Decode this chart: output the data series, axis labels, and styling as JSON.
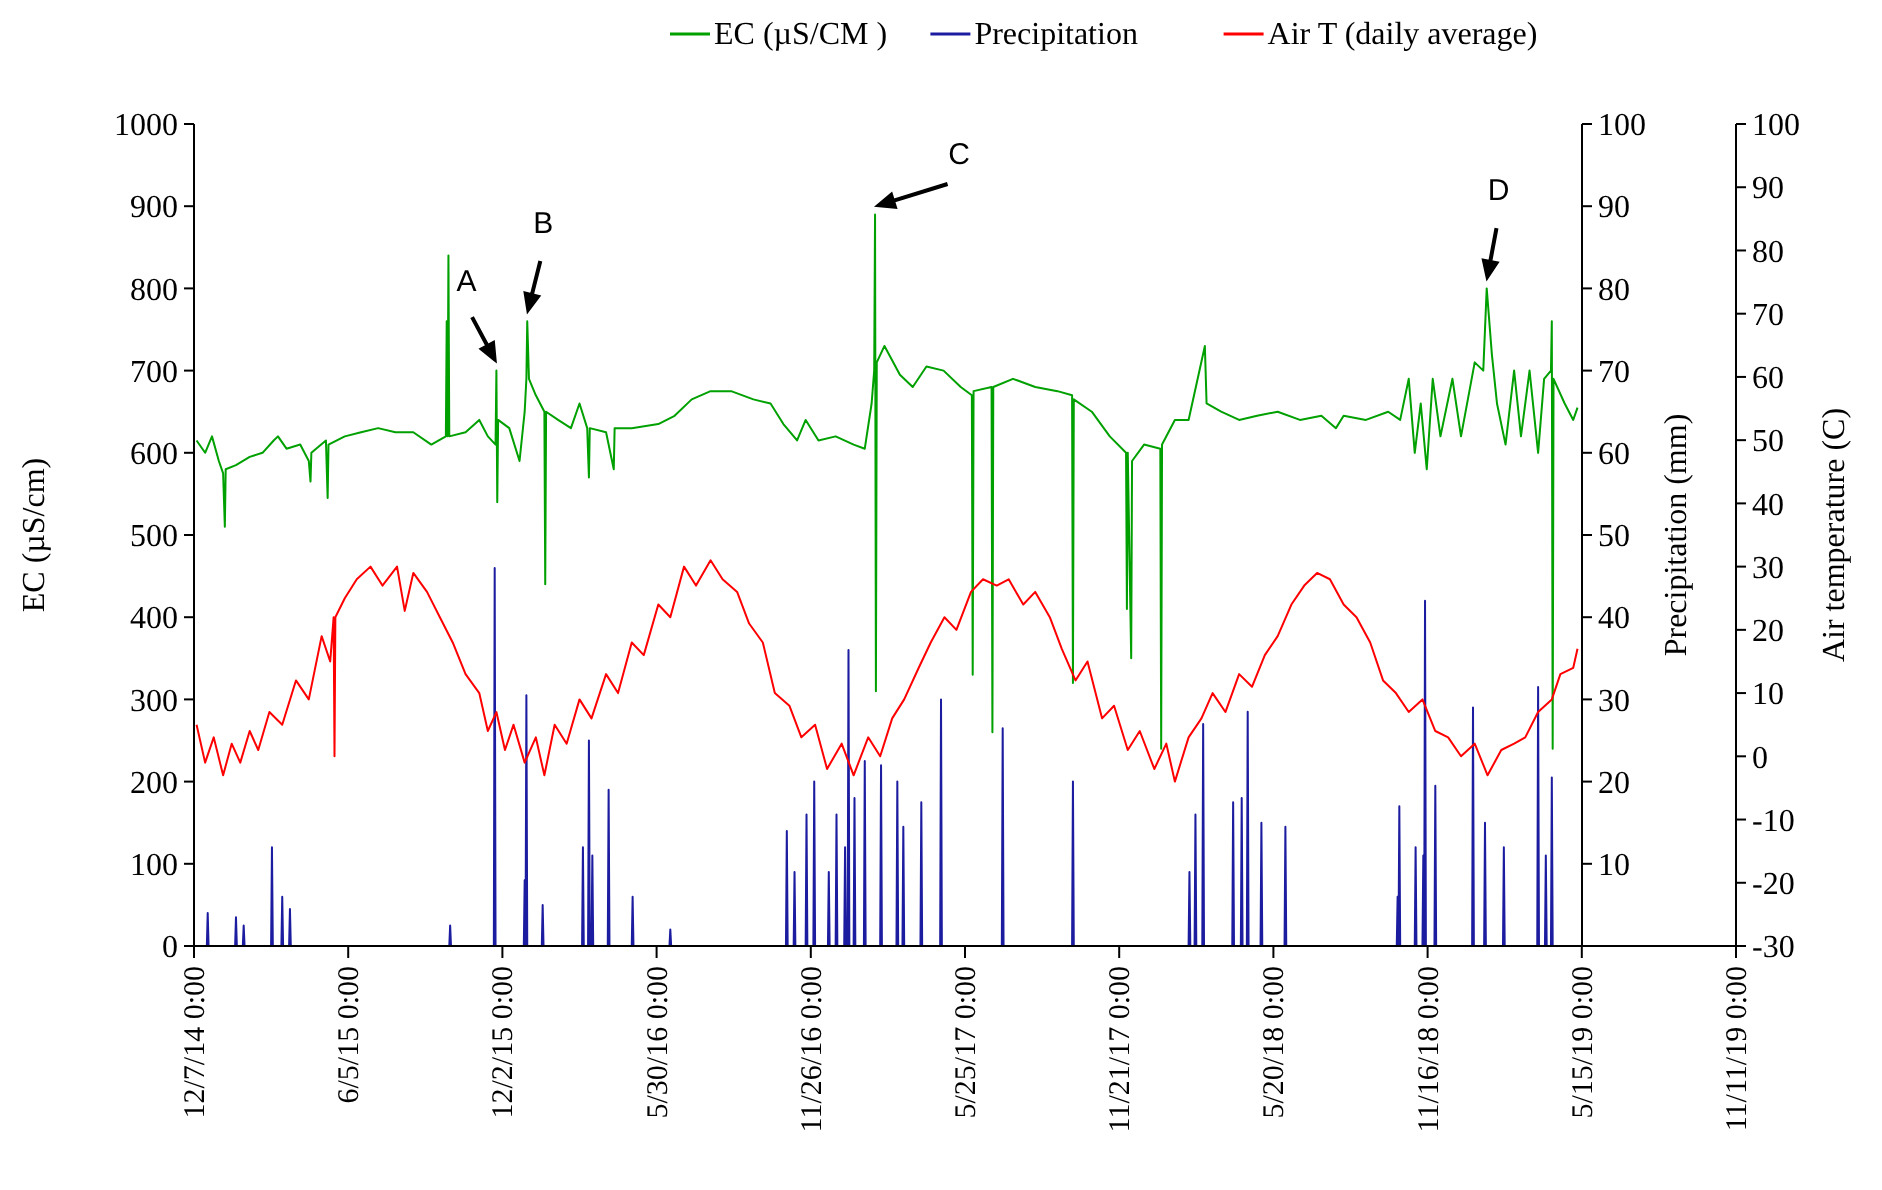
{
  "chart_data": {
    "type": "line",
    "xlim": [
      "2014-12-07",
      "2019-11-11"
    ],
    "xticks": [
      {
        "value": "2014-12-07",
        "label": "12/7/14 0:00"
      },
      {
        "value": "2015-06-05",
        "label": "6/5/15 0:00"
      },
      {
        "value": "2015-12-02",
        "label": "12/2/15 0:00"
      },
      {
        "value": "2016-05-30",
        "label": "5/30/16 0:00"
      },
      {
        "value": "2016-11-26",
        "label": "11/26/16 0:00"
      },
      {
        "value": "2017-05-25",
        "label": "5/25/17 0:00"
      },
      {
        "value": "2017-11-21",
        "label": "11/21/17 0:00"
      },
      {
        "value": "2018-05-20",
        "label": "5/20/18 0:00"
      },
      {
        "value": "2018-11-16",
        "label": "11/16/18 0:00"
      },
      {
        "value": "2019-05-15",
        "label": "5/15/19 0:00"
      },
      {
        "value": "2019-11-11",
        "label": "11/11/19 0:00"
      }
    ],
    "ylabel": "EC (µS/cm)",
    "ylim": [
      0,
      1000
    ],
    "yticks": [
      0,
      100,
      200,
      300,
      400,
      500,
      600,
      700,
      800,
      900,
      1000
    ],
    "y2label": "Precipitation (mm)",
    "y2lim": [
      0,
      100
    ],
    "y2ticks": [
      10,
      20,
      30,
      40,
      50,
      60,
      70,
      80,
      90,
      100
    ],
    "y3label": "Air temperature (C)",
    "y3lim": [
      -30,
      100
    ],
    "y3ticks": [
      -30,
      -20,
      -10,
      0,
      10,
      20,
      30,
      40,
      50,
      60,
      70,
      80,
      90,
      100
    ],
    "legend": "top",
    "grid": false,
    "annotations": [
      {
        "text": "A",
        "x": "2015-11-25",
        "y": 700
      },
      {
        "text": "B",
        "x": "2015-12-31",
        "y": 760
      },
      {
        "text": "C",
        "x": "2017-02-09",
        "y": 890
      },
      {
        "text": "D",
        "x": "2019-01-24",
        "y": 800
      }
    ],
    "series": [
      {
        "name": "EC (µS/CM )",
        "color": "#00a000",
        "x": [
          "2014-12-10",
          "2014-12-20",
          "2014-12-28",
          "2015-01-05",
          "2015-01-10",
          "2015-01-12",
          "2015-01-13",
          "2015-01-25",
          "2015-02-10",
          "2015-02-25",
          "2015-03-10",
          "2015-03-15",
          "2015-03-25",
          "2015-04-10",
          "2015-04-20",
          "2015-04-22",
          "2015-04-23",
          "2015-05-10",
          "2015-05-12",
          "2015-05-13",
          "2015-06-01",
          "2015-06-20",
          "2015-07-10",
          "2015-07-30",
          "2015-08-20",
          "2015-09-10",
          "2015-09-27",
          "2015-09-28",
          "2015-09-29",
          "2015-09-30",
          "2015-10-01",
          "2015-10-20",
          "2015-11-05",
          "2015-11-15",
          "2015-11-24",
          "2015-11-25",
          "2015-11-26",
          "2015-11-27",
          "2015-12-10",
          "2015-12-22",
          "2015-12-28",
          "2015-12-30",
          "2015-12-31",
          "2016-01-02",
          "2016-01-10",
          "2016-01-20",
          "2016-01-21",
          "2016-01-22",
          "2016-02-05",
          "2016-02-20",
          "2016-03-01",
          "2016-03-10",
          "2016-03-12",
          "2016-03-13",
          "2016-04-01",
          "2016-04-10",
          "2016-04-11",
          "2016-05-01",
          "2016-06-01",
          "2016-06-20",
          "2016-07-10",
          "2016-08-01",
          "2016-08-25",
          "2016-09-20",
          "2016-10-10",
          "2016-10-25",
          "2016-11-10",
          "2016-11-20",
          "2016-12-05",
          "2016-12-25",
          "2017-01-15",
          "2017-01-28",
          "2017-02-05",
          "2017-02-08",
          "2017-02-09",
          "2017-02-10",
          "2017-02-11",
          "2017-02-20",
          "2017-03-10",
          "2017-03-25",
          "2017-04-10",
          "2017-04-30",
          "2017-05-20",
          "2017-06-02",
          "2017-06-03",
          "2017-06-04",
          "2017-06-25",
          "2017-06-26",
          "2017-06-27",
          "2017-07-20",
          "2017-08-15",
          "2017-09-10",
          "2017-09-27",
          "2017-09-28",
          "2017-09-29",
          "2017-10-20",
          "2017-11-10",
          "2017-11-29",
          "2017-11-30",
          "2017-12-01",
          "2017-12-05",
          "2017-12-06",
          "2017-12-20",
          "2018-01-08",
          "2018-01-09",
          "2018-01-10",
          "2018-01-25",
          "2018-02-10",
          "2018-03-01",
          "2018-03-03",
          "2018-03-20",
          "2018-04-10",
          "2018-05-01",
          "2018-05-25",
          "2018-06-20",
          "2018-07-15",
          "2018-08-01",
          "2018-08-10",
          "2018-09-05",
          "2018-10-01",
          "2018-10-15",
          "2018-10-25",
          "2018-11-01",
          "2018-11-08",
          "2018-11-15",
          "2018-11-22",
          "2018-12-01",
          "2018-12-15",
          "2018-12-25",
          "2019-01-10",
          "2019-01-20",
          "2019-01-24",
          "2019-01-30",
          "2019-02-05",
          "2019-02-15",
          "2019-02-25",
          "2019-03-05",
          "2019-03-15",
          "2019-03-25",
          "2019-04-01",
          "2019-04-09",
          "2019-04-10",
          "2019-04-11",
          "2019-04-12",
          "2019-04-25",
          "2019-05-05",
          "2019-05-10"
        ],
        "values": [
          615,
          600,
          620,
          590,
          575,
          510,
          580,
          585,
          595,
          600,
          615,
          620,
          605,
          610,
          590,
          565,
          600,
          615,
          545,
          610,
          620,
          625,
          630,
          625,
          625,
          610,
          620,
          760,
          620,
          840,
          620,
          625,
          640,
          620,
          610,
          700,
          540,
          640,
          630,
          590,
          650,
          690,
          760,
          690,
          670,
          650,
          440,
          650,
          640,
          630,
          660,
          630,
          570,
          630,
          625,
          580,
          630,
          630,
          635,
          645,
          665,
          675,
          675,
          665,
          660,
          635,
          615,
          640,
          615,
          620,
          610,
          605,
          660,
          700,
          890,
          310,
          710,
          730,
          695,
          680,
          705,
          700,
          680,
          670,
          330,
          675,
          680,
          260,
          680,
          690,
          680,
          675,
          670,
          320,
          665,
          650,
          620,
          600,
          410,
          600,
          350,
          590,
          610,
          605,
          240,
          610,
          640,
          640,
          730,
          660,
          650,
          640,
          645,
          650,
          640,
          645,
          630,
          645,
          640,
          650,
          640,
          690,
          600,
          660,
          580,
          690,
          620,
          690,
          620,
          710,
          700,
          800,
          720,
          660,
          610,
          700,
          620,
          700,
          600,
          690,
          700,
          760,
          240,
          690,
          660,
          640,
          655
        ]
      },
      {
        "name": "Precipitation",
        "color": "#1c1ca0",
        "axis": "y2",
        "x": [
          "2014-12-22",
          "2014-12-23",
          "2014-12-24",
          "2015-01-24",
          "2015-01-25",
          "2015-01-26",
          "2015-02-02",
          "2015-02-03",
          "2015-02-04",
          "2015-03-07",
          "2015-03-08",
          "2015-03-09",
          "2015-03-19",
          "2015-03-20",
          "2015-03-21",
          "2015-03-28",
          "2015-03-29",
          "2015-03-30",
          "2015-10-01",
          "2015-10-02",
          "2015-10-03",
          "2015-11-22",
          "2015-11-23",
          "2015-11-24",
          "2015-12-27",
          "2015-12-28",
          "2015-12-29",
          "2015-12-30",
          "2015-12-31",
          "2016-01-17",
          "2016-01-18",
          "2016-01-19",
          "2016-03-04",
          "2016-03-05",
          "2016-03-06",
          "2016-03-11",
          "2016-03-12",
          "2016-03-13",
          "2016-03-15",
          "2016-03-16",
          "2016-03-17",
          "2016-04-03",
          "2016-04-04",
          "2016-04-05",
          "2016-05-01",
          "2016-05-02",
          "2016-05-03",
          "2016-06-14",
          "2016-06-15",
          "2016-06-16",
          "2016-10-28",
          "2016-10-29",
          "2016-10-30",
          "2016-11-06",
          "2016-11-07",
          "2016-11-08",
          "2016-11-20",
          "2016-11-21",
          "2016-11-22",
          "2016-11-29",
          "2016-11-30",
          "2016-12-01",
          "2016-12-16",
          "2016-12-17",
          "2016-12-18",
          "2016-12-25",
          "2016-12-26",
          "2016-12-27",
          "2017-01-04",
          "2017-01-05",
          "2017-01-06",
          "2017-01-08",
          "2017-01-09",
          "2017-01-10",
          "2017-01-15",
          "2017-01-16",
          "2017-01-17",
          "2017-01-27",
          "2017-01-28",
          "2017-01-29",
          "2017-02-15",
          "2017-02-16",
          "2017-02-17",
          "2017-03-06",
          "2017-03-07",
          "2017-03-08",
          "2017-03-13",
          "2017-03-14",
          "2017-03-15",
          "2017-04-03",
          "2017-04-04",
          "2017-04-05",
          "2017-04-26",
          "2017-04-27",
          "2017-04-28",
          "2017-07-07",
          "2017-07-08",
          "2017-07-09",
          "2017-09-27",
          "2017-09-28",
          "2017-09-29",
          "2018-02-10",
          "2018-02-11",
          "2018-02-12",
          "2018-02-17",
          "2018-02-18",
          "2018-02-19",
          "2018-02-26",
          "2018-02-27",
          "2018-02-28",
          "2018-04-02",
          "2018-04-03",
          "2018-04-04",
          "2018-04-12",
          "2018-04-13",
          "2018-04-14",
          "2018-04-19",
          "2018-04-20",
          "2018-04-21",
          "2018-05-05",
          "2018-05-06",
          "2018-05-07",
          "2018-06-02",
          "2018-06-03",
          "2018-06-04",
          "2018-10-11",
          "2018-10-12",
          "2018-10-13",
          "2018-10-14",
          "2018-10-15",
          "2018-11-01",
          "2018-11-02",
          "2018-11-03",
          "2018-11-10",
          "2018-11-11",
          "2018-11-12",
          "2018-11-13",
          "2018-11-14",
          "2018-11-24",
          "2018-11-25",
          "2018-11-26",
          "2019-01-07",
          "2019-01-08",
          "2019-01-09",
          "2019-01-21",
          "2019-01-22",
          "2019-01-23",
          "2019-02-12",
          "2019-02-13",
          "2019-02-14",
          "2019-03-24",
          "2019-03-25",
          "2019-03-26",
          "2019-04-02",
          "2019-04-03",
          "2019-04-04",
          "2019-04-09",
          "2019-04-10",
          "2019-04-11"
        ],
        "values": [
          0,
          4,
          0,
          0,
          3.5,
          0,
          0,
          2.5,
          0,
          0,
          12,
          0,
          0,
          6,
          0,
          0,
          4.5,
          0,
          0,
          2.5,
          0,
          0,
          46,
          0,
          0,
          8,
          0,
          30.5,
          0,
          0,
          5,
          0,
          0,
          12,
          0,
          0,
          25,
          0,
          0,
          11,
          0,
          0,
          19,
          0,
          0,
          6,
          0,
          0,
          2,
          0,
          0,
          14,
          0,
          0,
          9,
          0,
          0,
          16,
          0,
          0,
          20,
          0,
          0,
          9,
          0,
          0,
          16,
          0,
          0,
          12,
          0,
          0,
          36,
          0,
          0,
          18,
          0,
          0,
          22.5,
          0,
          0,
          22,
          0,
          0,
          20,
          0,
          0,
          14.5,
          0,
          0,
          17.5,
          0,
          0,
          30,
          0,
          0,
          26.5,
          0,
          0,
          20,
          0,
          0,
          9,
          0,
          0,
          16,
          0,
          0,
          27,
          0,
          0,
          17.5,
          0,
          0,
          18,
          0,
          0,
          28.5,
          0,
          0,
          15,
          0,
          0,
          14.5,
          0,
          0,
          6,
          0,
          17,
          0,
          0,
          12,
          0,
          0,
          11,
          0,
          42,
          0,
          0,
          19.5,
          0,
          0,
          29,
          0,
          0,
          15,
          0,
          0,
          12,
          0,
          0,
          31.5,
          0,
          0,
          11,
          0,
          0,
          20.5,
          0
        ]
      },
      {
        "name": "Air T (daily average)",
        "color": "#ff0000",
        "axis": "y3",
        "x": [
          "2014-12-10",
          "2014-12-20",
          "2014-12-30",
          "2015-01-10",
          "2015-01-20",
          "2015-01-30",
          "2015-02-10",
          "2015-02-20",
          "2015-03-05",
          "2015-03-20",
          "2015-04-05",
          "2015-04-20",
          "2015-05-05",
          "2015-05-15",
          "2015-05-19",
          "2015-05-20",
          "2015-05-21",
          "2015-06-01",
          "2015-06-15",
          "2015-07-01",
          "2015-07-15",
          "2015-08-01",
          "2015-08-10",
          "2015-08-20",
          "2015-09-05",
          "2015-09-20",
          "2015-10-05",
          "2015-10-20",
          "2015-11-05",
          "2015-11-15",
          "2015-11-25",
          "2015-12-05",
          "2015-12-15",
          "2015-12-28",
          "2016-01-10",
          "2016-01-20",
          "2016-02-01",
          "2016-02-15",
          "2016-03-01",
          "2016-03-15",
          "2016-04-01",
          "2016-04-15",
          "2016-05-01",
          "2016-05-15",
          "2016-06-01",
          "2016-06-15",
          "2016-07-01",
          "2016-07-15",
          "2016-08-01",
          "2016-08-15",
          "2016-09-01",
          "2016-09-15",
          "2016-10-01",
          "2016-10-15",
          "2016-11-01",
          "2016-11-15",
          "2016-12-01",
          "2016-12-15",
          "2017-01-01",
          "2017-01-15",
          "2017-02-01",
          "2017-02-15",
          "2017-03-01",
          "2017-03-15",
          "2017-04-01",
          "2017-04-15",
          "2017-05-01",
          "2017-05-15",
          "2017-06-01",
          "2017-06-15",
          "2017-07-01",
          "2017-07-15",
          "2017-08-01",
          "2017-08-15",
          "2017-09-01",
          "2017-09-15",
          "2017-10-01",
          "2017-10-15",
          "2017-11-01",
          "2017-11-15",
          "2017-12-01",
          "2017-12-15",
          "2018-01-01",
          "2018-01-15",
          "2018-01-25",
          "2018-02-10",
          "2018-02-25",
          "2018-03-10",
          "2018-03-25",
          "2018-04-10",
          "2018-04-25",
          "2018-05-10",
          "2018-05-25",
          "2018-06-10",
          "2018-06-25",
          "2018-07-10",
          "2018-07-25",
          "2018-08-10",
          "2018-08-25",
          "2018-09-10",
          "2018-09-25",
          "2018-10-10",
          "2018-10-25",
          "2018-11-10",
          "2018-11-25",
          "2018-12-10",
          "2018-12-25",
          "2019-01-10",
          "2019-01-25",
          "2019-02-10",
          "2019-02-25",
          "2019-03-10",
          "2019-03-25",
          "2019-04-10",
          "2019-04-20",
          "2019-05-05",
          "2019-05-10"
        ],
        "values": [
          5,
          -1,
          3,
          -3,
          2,
          -1,
          4,
          1,
          7,
          5,
          12,
          9,
          19,
          15,
          22,
          0,
          22,
          25,
          28,
          30,
          27,
          30,
          23,
          29,
          26,
          22,
          18,
          13,
          10,
          4,
          7,
          1,
          5,
          -1,
          3,
          -3,
          5,
          2,
          9,
          6,
          13,
          10,
          18,
          16,
          24,
          22,
          30,
          27,
          31,
          28,
          26,
          21,
          18,
          10,
          8,
          3,
          5,
          -2,
          2,
          -3,
          3,
          0,
          6,
          9,
          14,
          18,
          22,
          20,
          26,
          28,
          27,
          28,
          24,
          26,
          22,
          17,
          12,
          15,
          6,
          8,
          1,
          4,
          -2,
          2,
          -4,
          3,
          6,
          10,
          7,
          13,
          11,
          16,
          19,
          24,
          27,
          29,
          28,
          24,
          22,
          18,
          12,
          10,
          7,
          9,
          4,
          3,
          0,
          2,
          -3,
          1,
          2,
          3,
          7,
          9,
          13,
          14,
          17
        ]
      }
    ]
  }
}
